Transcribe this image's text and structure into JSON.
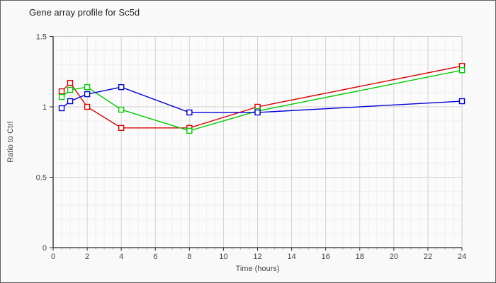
{
  "chart_data": {
    "type": "line",
    "title": "Gene array profile for Sc5d",
    "xlabel": "Time (hours)",
    "ylabel": "Ratio to Ctrl",
    "xlim": [
      0,
      24
    ],
    "ylim": [
      0,
      1.5
    ],
    "x_major_ticks": [
      0,
      2,
      4,
      6,
      8,
      10,
      12,
      14,
      16,
      18,
      20,
      22,
      24
    ],
    "x_tick_labels": [
      "0",
      "2",
      "4",
      "6",
      "8",
      "10",
      "12",
      "14",
      "16",
      "18",
      "20",
      "22",
      "24"
    ],
    "y_major_ticks": [
      0,
      0.5,
      1,
      1.5
    ],
    "y_tick_labels": [
      "0",
      "0.5",
      "1",
      "1.5"
    ],
    "x_minor_step": 0.5,
    "y_minor_step": 0.1,
    "grid": true,
    "legend": false,
    "marker": "open-square",
    "x": [
      0.5,
      1,
      2,
      4,
      8,
      12,
      24
    ],
    "series": [
      {
        "name": "series-red",
        "color": "#d80000",
        "values": [
          1.11,
          1.17,
          1.0,
          0.85,
          0.85,
          1.0,
          1.29
        ]
      },
      {
        "name": "series-green",
        "color": "#00cc00",
        "values": [
          1.07,
          1.12,
          1.14,
          0.98,
          0.83,
          0.97,
          1.26
        ]
      },
      {
        "name": "series-blue",
        "color": "#0000d8",
        "values": [
          0.99,
          1.04,
          1.09,
          1.14,
          0.96,
          0.96,
          1.04
        ]
      }
    ],
    "colors": {
      "axis": "#2a2a2a",
      "box": "#cccccc",
      "grid_major": "#d2d2d2",
      "grid_minor": "#efefef",
      "tick_label": "#444444",
      "plot_bg": "#fbfbfb",
      "marker_fill": "#ffffff"
    }
  }
}
